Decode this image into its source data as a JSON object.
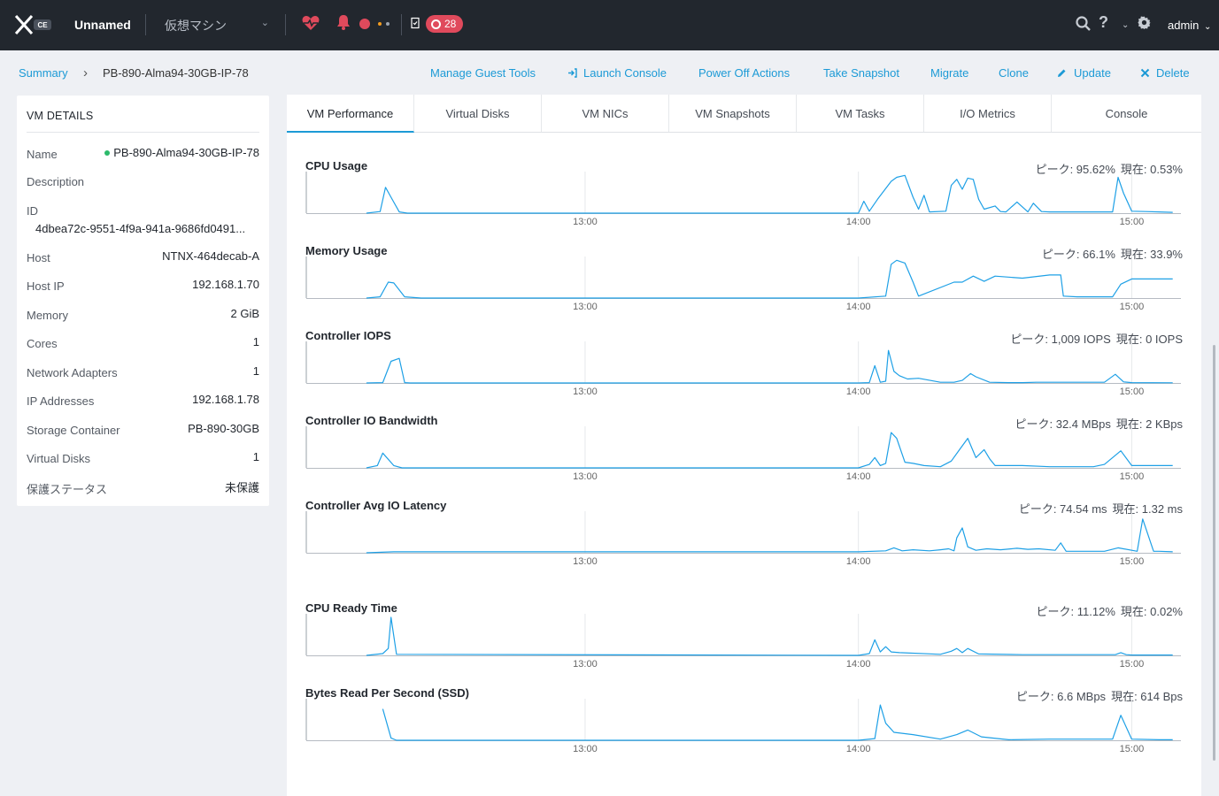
{
  "topbar": {
    "logo_text": "CE",
    "cluster_name": "Unnamed",
    "entity_select": "仮想マシン",
    "task_count": "28",
    "user": "admin"
  },
  "breadcrumb": {
    "root": "Summary",
    "separator": "›",
    "current": "PB-890-Alma94-30GB-IP-78"
  },
  "actions": {
    "manage_guest_tools": "Manage Guest Tools",
    "launch_console": "Launch Console",
    "power_off": "Power Off Actions",
    "take_snapshot": "Take Snapshot",
    "migrate": "Migrate",
    "clone": "Clone",
    "update": "Update",
    "delete": "Delete"
  },
  "details": {
    "title": "VM DETAILS",
    "rows": [
      {
        "key": "Name",
        "value": "PB-890-Alma94-30GB-IP-78"
      },
      {
        "key": "Description",
        "value": ""
      },
      {
        "key": "ID",
        "value": "4dbea72c-9551-4f9a-941a-9686fd0491..."
      },
      {
        "key": "Host",
        "value": "NTNX-464decab-A"
      },
      {
        "key": "Host IP",
        "value": "192.168.1.70"
      },
      {
        "key": "Memory",
        "value": "2 GiB"
      },
      {
        "key": "Cores",
        "value": "1"
      },
      {
        "key": "Network Adapters",
        "value": "1"
      },
      {
        "key": "IP Addresses",
        "value": "192.168.1.78"
      },
      {
        "key": "Storage Container",
        "value": "PB-890-30GB"
      },
      {
        "key": "Virtual Disks",
        "value": "1"
      },
      {
        "key": "保護ステータス",
        "value": "未保護"
      }
    ]
  },
  "tabs": [
    "VM Performance",
    "Virtual Disks",
    "VM NICs",
    "VM Snapshots",
    "VM Tasks",
    "I/O Metrics",
    "Console"
  ],
  "colors": {
    "accent": "#1c9ad6",
    "line": "#1ea0e6",
    "topbar": "#22272e",
    "alert": "#e04a5c"
  },
  "chart_data": [
    {
      "type": "line",
      "title": "CPU Usage",
      "peak_label": "ピーク: 95.62%",
      "current_label": "現在: 0.53%",
      "x_ticks": [
        "13:00",
        "14:00",
        "15:00"
      ],
      "ylim": [
        0,
        100
      ],
      "x": [
        12.2,
        12.25,
        12.27,
        12.29,
        12.32,
        12.35,
        14.0,
        14.02,
        14.04,
        14.07,
        14.12,
        14.14,
        14.17,
        14.2,
        14.22,
        14.24,
        14.26,
        14.32,
        14.34,
        14.36,
        14.38,
        14.4,
        14.42,
        14.44,
        14.46,
        14.5,
        14.52,
        14.54,
        14.58,
        14.62,
        14.64,
        14.67,
        14.7,
        14.93,
        14.95,
        14.97,
        15.0,
        15.05,
        15.1,
        15.15
      ],
      "y": [
        0,
        4,
        65,
        40,
        3,
        0,
        0,
        30,
        5,
        35,
        80,
        90,
        95,
        40,
        10,
        45,
        3,
        5,
        70,
        85,
        60,
        88,
        85,
        35,
        10,
        18,
        4,
        3,
        28,
        3,
        25,
        4,
        3,
        3,
        90,
        50,
        5,
        4,
        3,
        2
      ]
    },
    {
      "type": "line",
      "title": "Memory Usage",
      "peak_label": "ピーク: 66.1%",
      "current_label": "現在: 33.9%",
      "x_ticks": [
        "13:00",
        "14:00",
        "15:00"
      ],
      "ylim": [
        0,
        100
      ],
      "x": [
        12.2,
        12.25,
        12.28,
        12.3,
        12.34,
        12.4,
        14.0,
        14.1,
        14.12,
        14.14,
        14.17,
        14.2,
        14.22,
        14.35,
        14.38,
        14.42,
        14.46,
        14.5,
        14.6,
        14.7,
        14.74,
        14.75,
        14.8,
        14.93,
        14.96,
        15.0,
        15.06,
        15.15
      ],
      "y": [
        0,
        3,
        40,
        38,
        3,
        0,
        0,
        5,
        85,
        95,
        88,
        40,
        5,
        40,
        40,
        55,
        42,
        55,
        50,
        58,
        58,
        5,
        3,
        3,
        35,
        48,
        48,
        48
      ]
    },
    {
      "type": "line",
      "title": "Controller IOPS",
      "peak_label": "ピーク: 1,009 IOPS",
      "current_label": "現在: 0 IOPS",
      "x_ticks": [
        "13:00",
        "14:00",
        "15:00"
      ],
      "ylim": [
        0,
        1100
      ],
      "x": [
        12.2,
        12.26,
        12.29,
        12.32,
        12.34,
        12.36,
        14.0,
        14.04,
        14.06,
        14.08,
        14.1,
        14.11,
        14.13,
        14.15,
        14.18,
        14.22,
        14.3,
        14.35,
        14.38,
        14.41,
        14.43,
        14.48,
        14.55,
        14.6,
        14.65,
        14.9,
        14.94,
        14.97,
        15.0,
        15.15
      ],
      "y": [
        0,
        10,
        600,
        680,
        10,
        0,
        0,
        10,
        480,
        20,
        50,
        900,
        320,
        200,
        110,
        130,
        20,
        20,
        70,
        260,
        170,
        20,
        10,
        10,
        20,
        20,
        240,
        30,
        10,
        5
      ]
    },
    {
      "type": "line",
      "title": "Controller IO Bandwidth",
      "peak_label": "ピーク: 32.4 MBps",
      "current_label": "現在: 2 KBps",
      "x_ticks": [
        "13:00",
        "14:00",
        "15:00"
      ],
      "ylim": [
        0,
        35
      ],
      "x": [
        12.2,
        12.24,
        12.26,
        12.3,
        12.33,
        14.0,
        14.04,
        14.06,
        14.08,
        14.1,
        14.12,
        14.14,
        14.17,
        14.2,
        14.24,
        14.3,
        14.34,
        14.37,
        14.4,
        14.43,
        14.46,
        14.48,
        14.5,
        14.55,
        14.6,
        14.7,
        14.86,
        14.9,
        14.96,
        15.0,
        15.15
      ],
      "y": [
        0,
        2,
        13,
        2,
        0,
        0,
        3,
        9,
        2,
        4,
        31,
        26,
        5,
        4,
        2,
        1,
        6,
        16,
        26,
        9,
        16,
        8,
        2,
        2,
        2,
        1,
        1,
        3,
        15,
        2,
        2
      ]
    },
    {
      "type": "line",
      "title": "Controller Avg IO Latency",
      "peak_label": "ピーク: 74.54 ms",
      "current_label": "現在: 1.32 ms",
      "x_ticks": [
        "13:00",
        "14:00",
        "15:00"
      ],
      "ylim": [
        0,
        80
      ],
      "x": [
        12.2,
        12.3,
        12.5,
        13.0,
        13.5,
        14.0,
        14.1,
        14.13,
        14.16,
        14.2,
        14.26,
        14.3,
        14.33,
        14.35,
        14.36,
        14.38,
        14.4,
        14.43,
        14.47,
        14.52,
        14.58,
        14.62,
        14.66,
        14.72,
        14.74,
        14.76,
        14.8,
        14.9,
        14.95,
        15.02,
        15.04,
        15.08,
        15.1,
        15.15
      ],
      "y": [
        0,
        2,
        2,
        2,
        2,
        2,
        4,
        10,
        4,
        6,
        4,
        6,
        8,
        4,
        30,
        50,
        12,
        5,
        8,
        6,
        9,
        7,
        8,
        5,
        20,
        3,
        3,
        3,
        10,
        3,
        68,
        3,
        3,
        2
      ]
    },
    {
      "type": "line",
      "title": "CPU Ready Time",
      "peak_label": "ピーク: 11.12%",
      "current_label": "現在: 0.02%",
      "x_ticks": [
        "13:00",
        "14:00",
        "15:00"
      ],
      "ylim": [
        0,
        11.5
      ],
      "x": [
        12.2,
        12.26,
        12.28,
        12.29,
        12.31,
        14.0,
        14.04,
        14.06,
        14.08,
        14.1,
        14.12,
        14.15,
        14.3,
        14.34,
        14.36,
        14.38,
        14.4,
        14.44,
        14.6,
        14.94,
        14.96,
        14.98,
        15.0,
        15.15
      ],
      "y": [
        0,
        0.5,
        2,
        11,
        0.3,
        0,
        0.5,
        4.5,
        1,
        2.5,
        1,
        0.8,
        0.3,
        1.2,
        2,
        0.8,
        2,
        0.4,
        0.2,
        0.2,
        0.8,
        0.2,
        0.1,
        0.1
      ]
    },
    {
      "type": "line",
      "title": "Bytes Read Per Second (SSD)",
      "peak_label": "ピーク: 6.6 MBps",
      "current_label": "現在: 614 Bps",
      "x_ticks": [
        "13:00",
        "14:00",
        "15:00"
      ],
      "ylim": [
        0,
        7
      ],
      "x": [
        12.26,
        12.29,
        12.31,
        14.0,
        14.06,
        14.08,
        14.1,
        14.13,
        14.2,
        14.3,
        14.36,
        14.4,
        14.45,
        14.55,
        14.7,
        14.93,
        14.96,
        15.0,
        15.1,
        15.15
      ],
      "y": [
        5.5,
        0.4,
        0,
        0,
        0.3,
        6.2,
        3,
        1.4,
        1,
        0.2,
        1,
        1.8,
        0.6,
        0.1,
        0.2,
        0.2,
        4.4,
        0.2,
        0.1,
        0.1
      ]
    }
  ]
}
